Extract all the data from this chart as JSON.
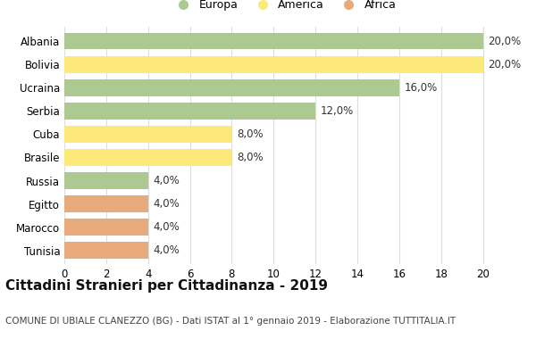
{
  "categories": [
    "Albania",
    "Bolivia",
    "Ucraina",
    "Serbia",
    "Cuba",
    "Brasile",
    "Russia",
    "Egitto",
    "Marocco",
    "Tunisia"
  ],
  "values": [
    20.0,
    20.0,
    16.0,
    12.0,
    8.0,
    8.0,
    4.0,
    4.0,
    4.0,
    4.0
  ],
  "colors": [
    "#adc992",
    "#fce97a",
    "#adc992",
    "#adc992",
    "#fce97a",
    "#fce97a",
    "#adc992",
    "#e8aa7a",
    "#e8aa7a",
    "#e8aa7a"
  ],
  "legend_labels": [
    "Europa",
    "America",
    "Africa"
  ],
  "legend_colors": [
    "#adc992",
    "#fce97a",
    "#e8aa7a"
  ],
  "title": "Cittadini Stranieri per Cittadinanza - 2019",
  "subtitle": "COMUNE DI UBIALE CLANEZZO (BG) - Dati ISTAT al 1° gennaio 2019 - Elaborazione TUTTITALIA.IT",
  "xlim": [
    0,
    21
  ],
  "xticks": [
    0,
    2,
    4,
    6,
    8,
    10,
    12,
    14,
    16,
    18,
    20
  ],
  "bar_height": 0.72,
  "background_color": "#ffffff",
  "grid_color": "#dddddd",
  "value_label_fontsize": 8.5,
  "title_fontsize": 11,
  "subtitle_fontsize": 7.5,
  "tick_fontsize": 8.5,
  "legend_fontsize": 9
}
